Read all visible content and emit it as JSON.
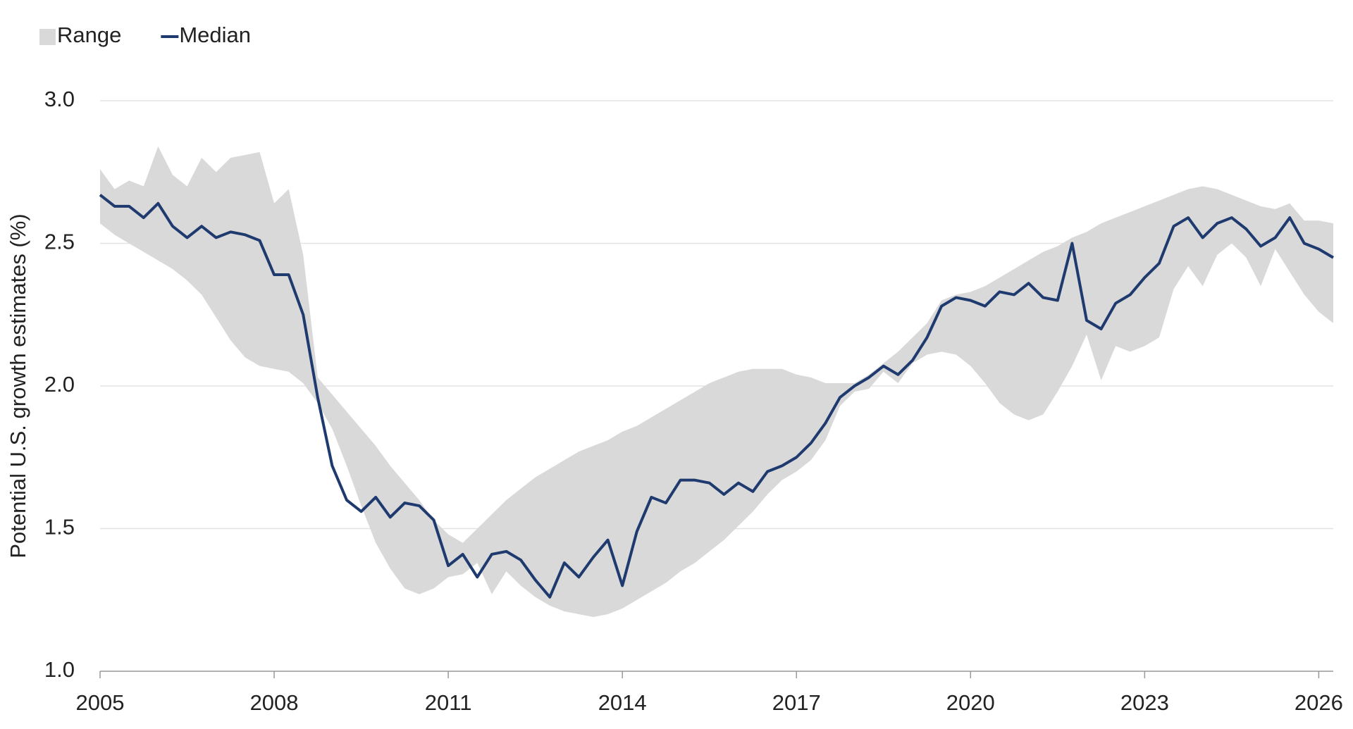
{
  "chart_data": {
    "type": "line",
    "ylabel": "Potential U.S. growth estimates (%)",
    "x": [
      2005,
      2005.25,
      2005.5,
      2005.75,
      2006,
      2006.25,
      2006.5,
      2006.75,
      2007,
      2007.25,
      2007.5,
      2007.75,
      2008,
      2008.25,
      2008.5,
      2008.75,
      2009,
      2009.25,
      2009.5,
      2009.75,
      2010,
      2010.25,
      2010.5,
      2010.75,
      2011,
      2011.25,
      2011.5,
      2011.75,
      2012,
      2012.25,
      2012.5,
      2012.75,
      2013,
      2013.25,
      2013.5,
      2013.75,
      2014,
      2014.25,
      2014.5,
      2014.75,
      2015,
      2015.25,
      2015.5,
      2015.75,
      2016,
      2016.25,
      2016.5,
      2016.75,
      2017,
      2017.25,
      2017.5,
      2017.75,
      2018,
      2018.25,
      2018.5,
      2018.75,
      2019,
      2019.25,
      2019.5,
      2019.75,
      2020,
      2020.25,
      2020.5,
      2020.75,
      2021,
      2021.25,
      2021.5,
      2021.75,
      2022,
      2022.25,
      2022.5,
      2022.75,
      2023,
      2023.25,
      2023.5,
      2023.75,
      2024,
      2024.25,
      2024.5,
      2024.75,
      2025,
      2025.25,
      2025.5,
      2025.75,
      2026,
      2026.25
    ],
    "series": [
      {
        "name": "Range",
        "color": "#d9d9d9",
        "high": [
          2.76,
          2.69,
          2.72,
          2.7,
          2.84,
          2.74,
          2.7,
          2.8,
          2.75,
          2.8,
          2.81,
          2.82,
          2.64,
          2.69,
          2.46,
          2.03,
          1.97,
          1.91,
          1.85,
          1.79,
          1.72,
          1.66,
          1.6,
          1.53,
          1.48,
          1.45,
          1.5,
          1.55,
          1.6,
          1.64,
          1.68,
          1.71,
          1.74,
          1.77,
          1.79,
          1.81,
          1.84,
          1.86,
          1.89,
          1.92,
          1.95,
          1.98,
          2.01,
          2.03,
          2.05,
          2.06,
          2.06,
          2.06,
          2.04,
          2.03,
          2.01,
          2.01,
          2.01,
          2.04,
          2.08,
          2.12,
          2.17,
          2.22,
          2.3,
          2.32,
          2.33,
          2.35,
          2.38,
          2.41,
          2.44,
          2.47,
          2.49,
          2.52,
          2.54,
          2.57,
          2.59,
          2.61,
          2.63,
          2.65,
          2.67,
          2.69,
          2.7,
          2.69,
          2.67,
          2.65,
          2.63,
          2.62,
          2.64,
          2.58,
          2.58,
          2.57
        ],
        "low": [
          2.57,
          2.53,
          2.5,
          2.47,
          2.44,
          2.41,
          2.37,
          2.32,
          2.24,
          2.16,
          2.1,
          2.07,
          2.06,
          2.05,
          2.01,
          1.94,
          1.85,
          1.72,
          1.58,
          1.45,
          1.36,
          1.29,
          1.27,
          1.29,
          1.33,
          1.34,
          1.38,
          1.27,
          1.35,
          1.3,
          1.26,
          1.23,
          1.21,
          1.2,
          1.19,
          1.2,
          1.22,
          1.25,
          1.28,
          1.31,
          1.35,
          1.38,
          1.42,
          1.46,
          1.51,
          1.56,
          1.62,
          1.67,
          1.7,
          1.74,
          1.81,
          1.93,
          1.98,
          1.99,
          2.05,
          2.01,
          2.08,
          2.11,
          2.12,
          2.11,
          2.07,
          2.01,
          1.94,
          1.9,
          1.88,
          1.9,
          1.98,
          2.07,
          2.18,
          2.02,
          2.14,
          2.12,
          2.14,
          2.17,
          2.34,
          2.42,
          2.35,
          2.46,
          2.5,
          2.45,
          2.35,
          2.48,
          2.4,
          2.32,
          2.26,
          2.22
        ]
      },
      {
        "name": "Median",
        "color": "#1f3a6e",
        "values": [
          2.67,
          2.63,
          2.63,
          2.59,
          2.64,
          2.56,
          2.52,
          2.56,
          2.52,
          2.54,
          2.53,
          2.51,
          2.39,
          2.39,
          2.25,
          1.96,
          1.72,
          1.6,
          1.56,
          1.61,
          1.54,
          1.59,
          1.58,
          1.53,
          1.37,
          1.41,
          1.33,
          1.41,
          1.42,
          1.39,
          1.32,
          1.26,
          1.38,
          1.33,
          1.4,
          1.46,
          1.3,
          1.49,
          1.61,
          1.59,
          1.67,
          1.67,
          1.66,
          1.62,
          1.66,
          1.63,
          1.7,
          1.72,
          1.75,
          1.8,
          1.87,
          1.96,
          2.0,
          2.03,
          2.07,
          2.04,
          2.09,
          2.17,
          2.28,
          2.31,
          2.3,
          2.28,
          2.33,
          2.32,
          2.36,
          2.31,
          2.3,
          2.5,
          2.23,
          2.2,
          2.29,
          2.32,
          2.38,
          2.43,
          2.56,
          2.59,
          2.52,
          2.57,
          2.59,
          2.55,
          2.49,
          2.52,
          2.59,
          2.5,
          2.48,
          2.45
        ]
      }
    ],
    "xlim": [
      2005,
      2026.25
    ],
    "xticks": [
      2005,
      2008,
      2011,
      2014,
      2017,
      2020,
      2023,
      2026
    ],
    "ylim": [
      1,
      3
    ],
    "yticks": [
      {
        "value": 1,
        "label": "1.0"
      },
      1.5,
      {
        "value": 2,
        "label": "2.0"
      },
      2.5,
      {
        "value": 3,
        "label": "3.0"
      }
    ],
    "grid": true,
    "legend": "top-left"
  }
}
